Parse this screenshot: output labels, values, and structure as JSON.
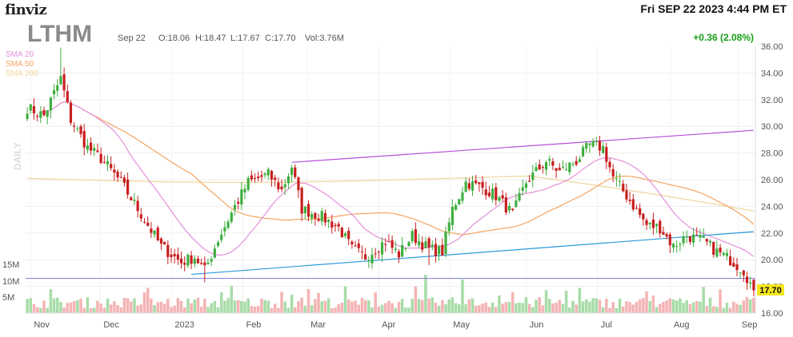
{
  "header": {
    "logo": "finviz",
    "datetime": "Fri SEP 22 2023 4:44 PM ET"
  },
  "chart_data": {
    "type": "candlestick",
    "ticker": "LTHM",
    "period": "DAILY",
    "quote": {
      "date": "Sep 22",
      "open": "O:18.06",
      "high": "H:18.47",
      "low": "L:17.67",
      "close": "C:17.70",
      "volume": "Vol:3.76M"
    },
    "change": "+0.36 (2.08%)",
    "last_price": "17.70",
    "legend": [
      {
        "name": "SMA 20",
        "color": "#e48fd8"
      },
      {
        "name": "SMA 50",
        "color": "#f4a460"
      },
      {
        "name": "SMA 200",
        "color": "#f2d49b"
      }
    ],
    "y_range": [
      16,
      36
    ],
    "y_ticks": [
      "36.00",
      "34.00",
      "32.00",
      "30.00",
      "28.00",
      "26.00",
      "24.00",
      "22.00",
      "20.00",
      "18.00",
      "16.00"
    ],
    "volume_ticks": [
      "15M",
      "10M",
      "5M"
    ],
    "x_labels": [
      "Nov",
      "Dec",
      "2023",
      "Feb",
      "Mar",
      "Apr",
      "May",
      "Jun",
      "Jul",
      "Aug",
      "Sep"
    ],
    "colors": {
      "up": "#3fae3f",
      "down": "#c81e1e",
      "vol_up": "#a8dca8",
      "vol_down": "#f4b4b4"
    },
    "anchors": [
      {
        "i": 0,
        "c": 31.4
      },
      {
        "i": 5,
        "c": 30.8
      },
      {
        "i": 10,
        "c": 33.6
      },
      {
        "i": 13,
        "c": 30.5
      },
      {
        "i": 18,
        "c": 28.4
      },
      {
        "i": 22,
        "c": 27.6
      },
      {
        "i": 28,
        "c": 25.8
      },
      {
        "i": 34,
        "c": 23.4
      },
      {
        "i": 40,
        "c": 21.0
      },
      {
        "i": 46,
        "c": 19.8
      },
      {
        "i": 50,
        "c": 20.2
      },
      {
        "i": 53,
        "c": 19.2
      },
      {
        "i": 57,
        "c": 21.5
      },
      {
        "i": 62,
        "c": 24.0
      },
      {
        "i": 66,
        "c": 25.8
      },
      {
        "i": 72,
        "c": 26.4
      },
      {
        "i": 76,
        "c": 25.2
      },
      {
        "i": 79,
        "c": 27.0
      },
      {
        "i": 82,
        "c": 23.8
      },
      {
        "i": 88,
        "c": 23.2
      },
      {
        "i": 93,
        "c": 22.4
      },
      {
        "i": 97,
        "c": 20.8
      },
      {
        "i": 101,
        "c": 20.2
      },
      {
        "i": 107,
        "c": 21.4
      },
      {
        "i": 111,
        "c": 20.4
      },
      {
        "i": 115,
        "c": 21.8
      },
      {
        "i": 120,
        "c": 20.8
      },
      {
        "i": 124,
        "c": 20.6
      },
      {
        "i": 127,
        "c": 23.8
      },
      {
        "i": 131,
        "c": 25.8
      },
      {
        "i": 136,
        "c": 25.4
      },
      {
        "i": 140,
        "c": 24.8
      },
      {
        "i": 145,
        "c": 23.4
      },
      {
        "i": 149,
        "c": 25.8
      },
      {
        "i": 155,
        "c": 27.4
      },
      {
        "i": 159,
        "c": 26.6
      },
      {
        "i": 164,
        "c": 27.4
      },
      {
        "i": 168,
        "c": 28.6
      },
      {
        "i": 172,
        "c": 28.4
      },
      {
        "i": 175,
        "c": 26.2
      },
      {
        "i": 179,
        "c": 24.8
      },
      {
        "i": 185,
        "c": 22.6
      },
      {
        "i": 189,
        "c": 22.4
      },
      {
        "i": 193,
        "c": 21.0
      },
      {
        "i": 197,
        "c": 21.8
      },
      {
        "i": 202,
        "c": 21.4
      },
      {
        "i": 206,
        "c": 20.6
      },
      {
        "i": 210,
        "c": 20.0
      },
      {
        "i": 214,
        "c": 19.2
      },
      {
        "i": 217,
        "c": 17.7
      }
    ],
    "trendlines": [
      {
        "name": "upper-resistance",
        "color": "#b44fd8",
        "from": {
          "i": 79,
          "c": 27.3
        },
        "to": {
          "i": 217,
          "c": 29.7
        }
      },
      {
        "name": "lower-support",
        "color": "#2a9ad8",
        "from": {
          "i": 49,
          "c": 18.9
        },
        "to": {
          "i": 217,
          "c": 22.1
        }
      }
    ],
    "horizontal_line": {
      "name": "price-level",
      "color": "#7a7ad8",
      "value": 18.6
    }
  }
}
